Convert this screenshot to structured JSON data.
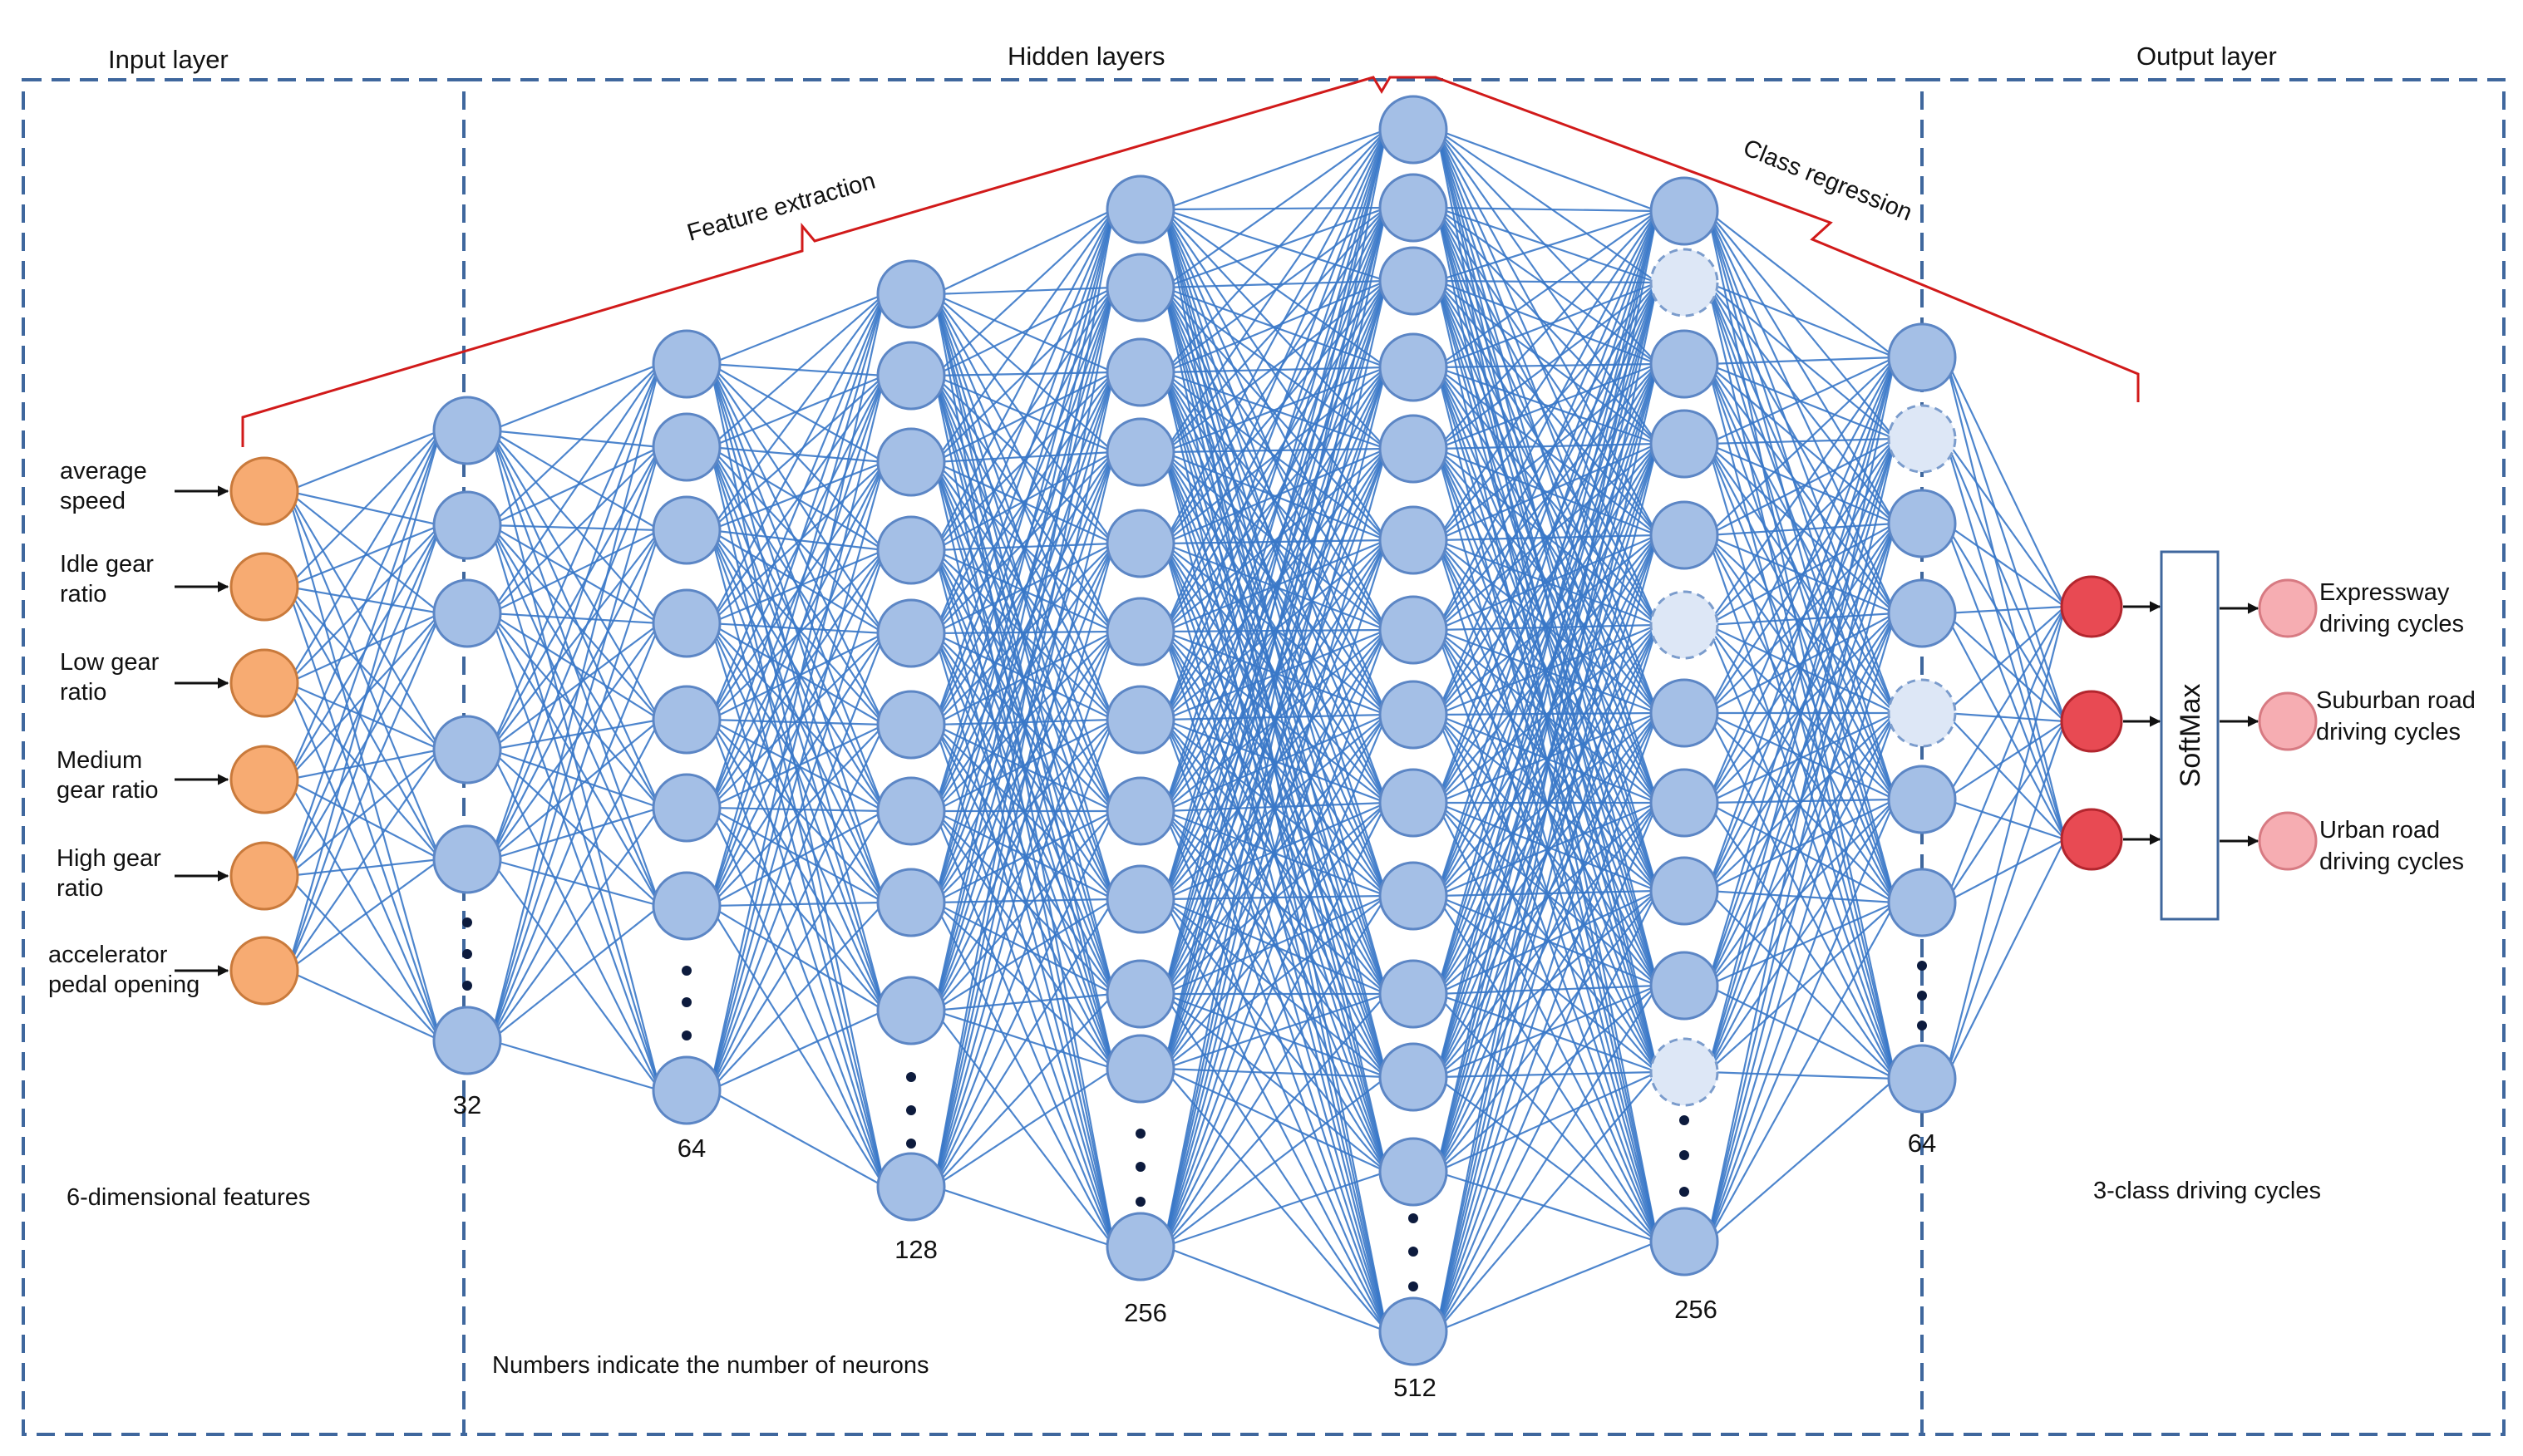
{
  "regions": {
    "input_title": "Input layer",
    "hidden_title": "Hidden layers",
    "output_title": "Output layer"
  },
  "braces": {
    "feature_extraction": "Feature extraction",
    "class_regression": "Class regression"
  },
  "inputs": [
    {
      "line1": "average",
      "line2": "speed"
    },
    {
      "line1": "Idle gear",
      "line2": "ratio"
    },
    {
      "line1": "Low gear",
      "line2": "ratio"
    },
    {
      "line1": "Medium",
      "line2": "gear ratio"
    },
    {
      "line1": "High gear",
      "line2": "ratio"
    },
    {
      "line1": "accelerator",
      "line2": "pedal opening"
    }
  ],
  "layer_counts": [
    "32",
    "64",
    "128",
    "256",
    "512",
    "256",
    "64"
  ],
  "softmax_label": "SoftMax",
  "outputs": [
    {
      "line1": "Expressway",
      "line2": "driving cycles"
    },
    {
      "line1": "Suburban road",
      "line2": "driving cycles"
    },
    {
      "line1": "Urban road",
      "line2": "driving cycles"
    }
  ],
  "captions": {
    "input_features": "6-dimensional features",
    "output_classes": "3-class driving cycles",
    "neuron_note": "Numbers indicate the number of neurons"
  },
  "colors": {
    "input_node": "#f7ab72",
    "hidden_node": "#a4bfe6",
    "dropout_node": "#dde7f6",
    "output_node": "#e84a53",
    "class_node": "#f6adb2",
    "edge": "#3a78c8",
    "brace": "#d11a1a",
    "box": "#3f679d"
  }
}
